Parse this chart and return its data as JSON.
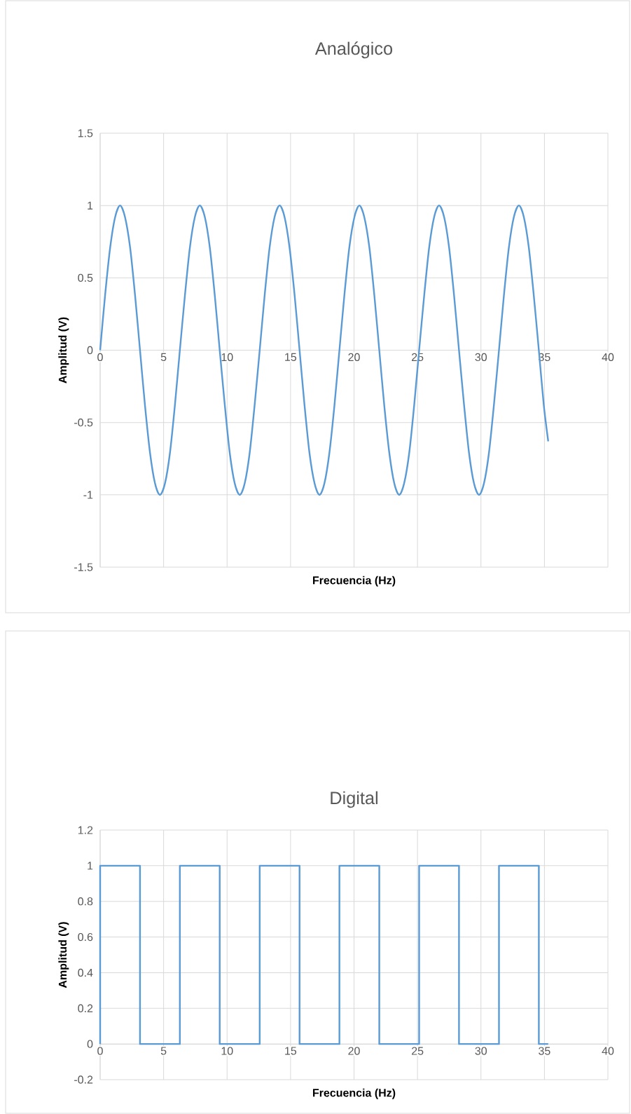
{
  "chart_data": [
    {
      "type": "line",
      "title": "Analógico",
      "xlabel": "Frecuencia (Hz)",
      "ylabel": "Amplitud (V)",
      "color": "#5b9bd5",
      "marker": "none",
      "grid": true,
      "x": [
        0,
        0.39,
        0.79,
        1.18,
        1.57,
        1.96,
        2.36,
        2.75,
        3.14,
        3.53,
        3.93,
        4.32,
        4.71,
        5.11,
        5.5,
        5.89,
        6.28,
        6.68,
        7.07,
        7.46,
        7.85,
        8.25,
        8.64,
        9.03,
        9.42,
        9.82,
        10.21,
        10.6,
        11.0,
        11.39,
        11.78,
        12.17,
        12.57,
        12.96,
        13.35,
        13.74,
        14.14,
        14.53,
        14.92,
        15.32,
        15.71,
        16.1,
        16.49,
        16.89,
        17.28,
        17.67,
        18.06,
        18.46,
        18.85,
        19.24,
        19.63,
        20.03,
        20.42,
        20.81,
        21.21,
        21.6,
        21.99,
        22.38,
        22.78,
        23.17,
        23.56,
        23.95,
        24.35,
        24.74,
        25.13,
        25.53,
        25.92,
        26.31,
        26.7,
        27.1,
        27.49,
        27.88,
        28.27,
        28.67,
        29.06,
        29.45,
        29.85,
        30.24,
        30.63,
        31.02,
        31.42,
        31.81,
        32.2,
        32.59,
        32.99,
        33.38,
        33.77,
        34.16,
        34.56,
        34.95,
        35.3
      ],
      "values": [
        0,
        0.38,
        0.71,
        0.92,
        1,
        0.92,
        0.71,
        0.38,
        0,
        -0.38,
        -0.71,
        -0.92,
        -1,
        -0.92,
        -0.71,
        -0.38,
        0,
        0.38,
        0.71,
        0.92,
        1,
        0.92,
        0.71,
        0.38,
        0,
        -0.38,
        -0.71,
        -0.92,
        -1,
        -0.92,
        -0.71,
        -0.38,
        0,
        0.38,
        0.71,
        0.92,
        1,
        0.92,
        0.71,
        0.38,
        0,
        -0.38,
        -0.71,
        -0.92,
        -1,
        -0.92,
        -0.71,
        -0.38,
        0,
        0.38,
        0.71,
        0.92,
        1,
        0.92,
        0.71,
        0.38,
        0,
        -0.38,
        -0.71,
        -0.92,
        -1,
        -0.92,
        -0.71,
        -0.38,
        0,
        0.38,
        0.71,
        0.92,
        1,
        0.92,
        0.71,
        0.38,
        0,
        -0.38,
        -0.71,
        -0.92,
        -1,
        -0.92,
        -0.71,
        -0.38,
        0,
        0.38,
        0.71,
        0.92,
        1,
        0.92,
        0.71,
        0.38,
        0,
        -0.38,
        -0.63
      ],
      "xlim": [
        0,
        40
      ],
      "xticks": [
        0,
        5,
        10,
        15,
        20,
        25,
        30,
        35,
        40
      ],
      "ylim": [
        -1.5,
        1.5
      ],
      "yticks": [
        -1.5,
        -1,
        -0.5,
        0,
        0.5,
        1,
        1.5
      ]
    },
    {
      "type": "step",
      "title": "Digital",
      "xlabel": "Frecuencia (Hz)",
      "ylabel": "Amplitud (V)",
      "color": "#5b9bd5",
      "marker": "none",
      "grid": true,
      "x": [
        0,
        0,
        3.14,
        6.28,
        9.42,
        12.57,
        15.71,
        18.85,
        21.99,
        25.13,
        28.27,
        31.42,
        34.56,
        35.3
      ],
      "values": [
        0,
        1,
        0,
        1,
        0,
        1,
        0,
        1,
        0,
        1,
        0,
        1,
        0,
        0
      ],
      "xlim": [
        0,
        40
      ],
      "xticks": [
        0,
        5,
        10,
        15,
        20,
        25,
        30,
        35,
        40
      ],
      "ylim": [
        -0.2,
        1.2
      ],
      "yticks": [
        -0.2,
        0,
        0.2,
        0.4,
        0.6,
        0.8,
        1,
        1.2
      ]
    }
  ]
}
